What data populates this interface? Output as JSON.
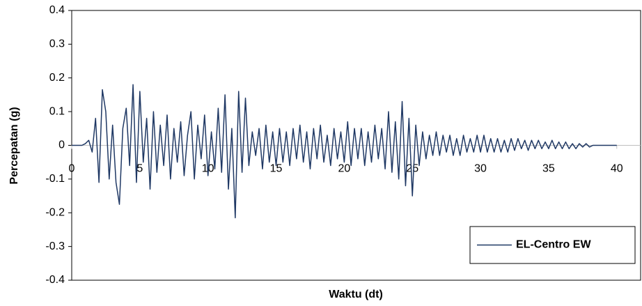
{
  "chart_data": {
    "type": "line",
    "x_label": "Waktu (dt)",
    "y_label": "Percepatan (g)",
    "xlim": [
      0,
      41.75
    ],
    "ylim": [
      -0.4,
      0.4
    ],
    "xticks": [
      0,
      5,
      10,
      15,
      20,
      25,
      30,
      35,
      40
    ],
    "yticks": [
      -0.4,
      -0.3,
      -0.2,
      -0.1,
      0,
      0.1,
      0.2,
      0.3,
      0.4
    ],
    "legend": "bottom-right",
    "x": [
      0,
      0.25,
      0.5,
      0.75,
      1,
      1.25,
      1.5,
      1.75,
      2,
      2.25,
      2.5,
      2.75,
      3,
      3.25,
      3.5,
      3.75,
      4,
      4.25,
      4.5,
      4.75,
      5,
      5.25,
      5.5,
      5.75,
      6,
      6.25,
      6.5,
      6.75,
      7,
      7.25,
      7.5,
      7.75,
      8,
      8.25,
      8.5,
      8.75,
      9,
      9.25,
      9.5,
      9.75,
      10,
      10.25,
      10.5,
      10.75,
      11,
      11.25,
      11.5,
      11.75,
      12,
      12.25,
      12.5,
      12.75,
      13,
      13.25,
      13.5,
      13.75,
      14,
      14.25,
      14.5,
      14.75,
      15,
      15.25,
      15.5,
      15.75,
      16,
      16.25,
      16.5,
      16.75,
      17,
      17.25,
      17.5,
      17.75,
      18,
      18.25,
      18.5,
      18.75,
      19,
      19.25,
      19.5,
      19.75,
      20,
      20.25,
      20.5,
      20.75,
      21,
      21.25,
      21.5,
      21.75,
      22,
      22.25,
      22.5,
      22.75,
      23,
      23.25,
      23.5,
      23.75,
      24,
      24.25,
      24.5,
      24.75,
      25,
      25.25,
      25.5,
      25.75,
      26,
      26.25,
      26.5,
      26.75,
      27,
      27.25,
      27.5,
      27.75,
      28,
      28.25,
      28.5,
      28.75,
      29,
      29.25,
      29.5,
      29.75,
      30,
      30.25,
      30.5,
      30.75,
      31,
      31.25,
      31.5,
      31.75,
      32,
      32.25,
      32.5,
      32.75,
      33,
      33.25,
      33.5,
      33.75,
      34,
      34.25,
      34.5,
      34.75,
      35,
      35.25,
      35.5,
      35.75,
      36,
      36.25,
      36.5,
      36.75,
      37,
      37.25,
      37.5,
      37.75,
      38,
      38.25,
      38.5,
      38.75,
      39,
      39.25,
      39.5,
      39.75,
      40
    ],
    "series": [
      {
        "name": "EL-Centro EW",
        "color": "#1f3864",
        "values": [
          0,
          0,
          0,
          0,
          0.005,
          0.015,
          -0.02,
          0.08,
          -0.11,
          0.165,
          0.1,
          -0.1,
          0.06,
          -0.11,
          -0.175,
          0.05,
          0.11,
          -0.06,
          0.18,
          -0.11,
          0.16,
          -0.05,
          0.08,
          -0.13,
          0.1,
          -0.08,
          0.06,
          -0.06,
          0.09,
          -0.1,
          0.05,
          -0.05,
          0.07,
          -0.09,
          0.03,
          0.1,
          -0.1,
          0.06,
          -0.04,
          0.09,
          -0.09,
          0.04,
          -0.07,
          0.11,
          -0.08,
          0.15,
          -0.13,
          0.05,
          -0.215,
          0.16,
          -0.08,
          0.14,
          -0.06,
          0.04,
          -0.03,
          0.05,
          -0.07,
          0.06,
          -0.05,
          0.04,
          -0.06,
          0.05,
          -0.05,
          0.04,
          -0.06,
          0.05,
          -0.04,
          0.06,
          -0.05,
          0.04,
          -0.07,
          0.05,
          -0.04,
          0.06,
          -0.05,
          0.03,
          -0.06,
          0.05,
          -0.04,
          0.04,
          -0.05,
          0.07,
          -0.06,
          0.05,
          -0.04,
          0.05,
          -0.06,
          0.04,
          -0.05,
          0.06,
          -0.04,
          0.05,
          -0.07,
          0.1,
          -0.08,
          0.07,
          -0.1,
          0.13,
          -0.12,
          0.08,
          -0.15,
          0.06,
          -0.06,
          0.04,
          -0.04,
          0.03,
          -0.03,
          0.04,
          -0.03,
          0.03,
          -0.02,
          0.03,
          -0.03,
          0.02,
          -0.03,
          0.03,
          -0.02,
          0.02,
          -0.02,
          0.03,
          -0.02,
          0.03,
          -0.02,
          0.02,
          -0.02,
          0.02,
          -0.02,
          0.015,
          -0.02,
          0.02,
          -0.015,
          0.02,
          -0.01,
          0.015,
          -0.015,
          0.015,
          -0.01,
          0.015,
          -0.01,
          0.01,
          -0.01,
          0.015,
          -0.01,
          0.01,
          -0.01,
          0.01,
          -0.01,
          0.005,
          -0.01,
          0.005,
          -0.005,
          0.005,
          -0.005,
          0,
          0,
          0,
          0,
          0,
          0,
          0,
          0
        ]
      }
    ]
  }
}
